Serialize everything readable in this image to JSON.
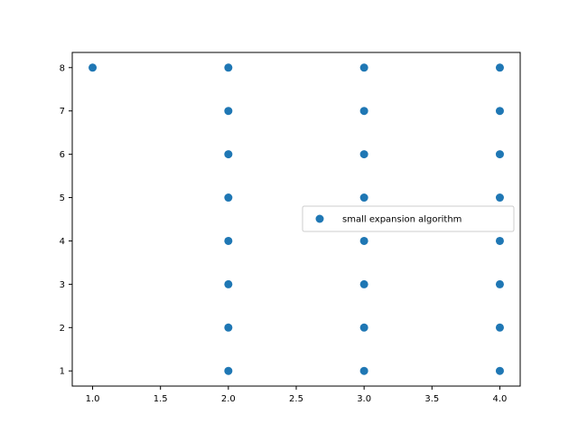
{
  "chart_data": {
    "type": "scatter",
    "title": "",
    "xlabel": "",
    "ylabel": "",
    "xlim": [
      0.85,
      4.15
    ],
    "ylim": [
      0.65,
      8.35
    ],
    "xticks": [
      1.0,
      1.5,
      2.0,
      2.5,
      3.0,
      3.5,
      4.0
    ],
    "xtick_labels": [
      "1.0",
      "1.5",
      "2.0",
      "2.5",
      "3.0",
      "3.5",
      "4.0"
    ],
    "yticks": [
      1,
      2,
      3,
      4,
      5,
      6,
      7,
      8
    ],
    "ytick_labels": [
      "1",
      "2",
      "3",
      "4",
      "5",
      "6",
      "7",
      "8"
    ],
    "grid": false,
    "legend": {
      "placement": "center-right"
    },
    "series": [
      {
        "name": "small expansion algorithm",
        "color": "#1f77b4",
        "x": [
          1,
          2,
          2,
          2,
          2,
          2,
          2,
          2,
          2,
          3,
          3,
          3,
          3,
          3,
          3,
          3,
          3,
          4,
          4,
          4,
          4,
          4,
          4,
          4,
          4
        ],
        "y": [
          8,
          8,
          7,
          6,
          5,
          4,
          3,
          2,
          1,
          8,
          7,
          6,
          5,
          4,
          3,
          2,
          1,
          8,
          7,
          6,
          5,
          4,
          3,
          2,
          1
        ]
      }
    ]
  }
}
